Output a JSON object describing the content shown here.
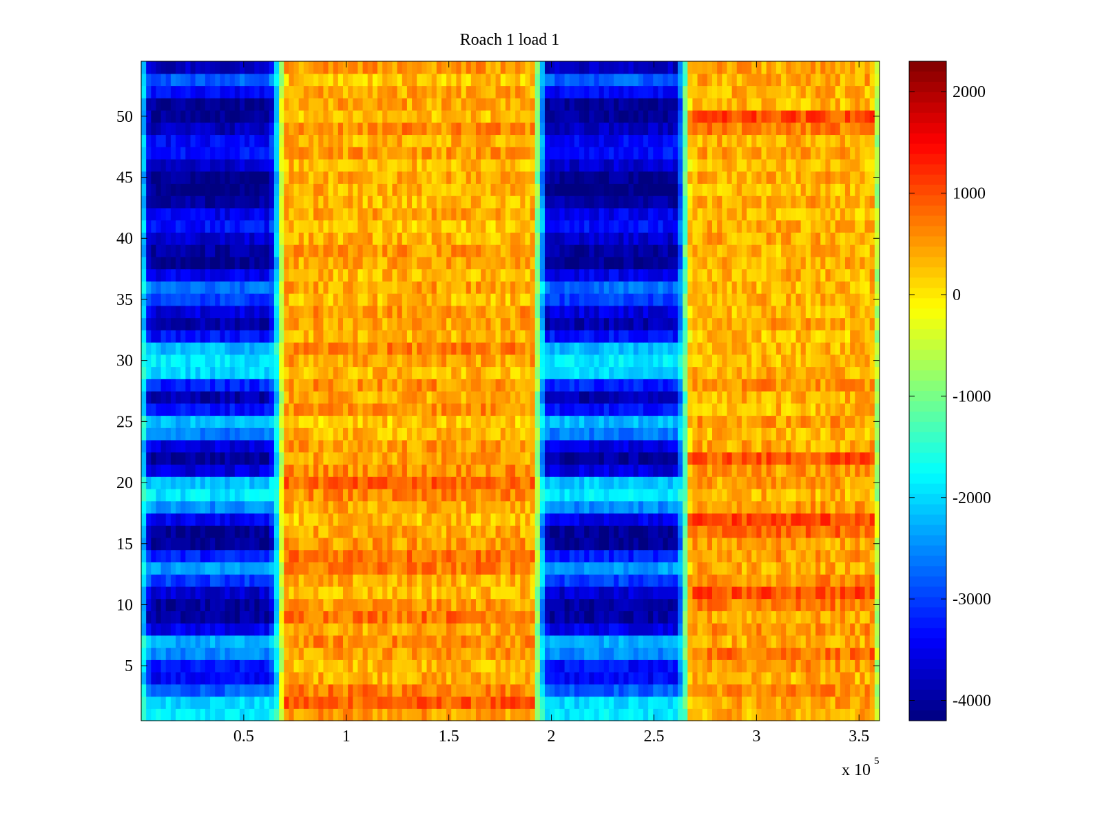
{
  "chart_data": {
    "type": "heatmap",
    "title": "Roach 1 load 1",
    "xlabel": "",
    "ylabel": "",
    "x_multiplier_label": "x 10",
    "x_multiplier_exponent": "5",
    "xlim": [
      0,
      3.6
    ],
    "ylim": [
      0.5,
      54.5
    ],
    "x_ticks": [
      0.5,
      1,
      1.5,
      2,
      2.5,
      3,
      3.5
    ],
    "x_tick_labels": [
      "0.5",
      "1",
      "1.5",
      "2",
      "2.5",
      "3",
      "3.5"
    ],
    "y_ticks": [
      5,
      10,
      15,
      20,
      25,
      30,
      35,
      40,
      45,
      50
    ],
    "y_tick_labels": [
      "5",
      "10",
      "15",
      "20",
      "25",
      "30",
      "35",
      "40",
      "45",
      "50"
    ],
    "rows": 54,
    "colorbar": {
      "colormap": "jet",
      "clim": [
        -4200,
        2300
      ],
      "ticks": [
        2000,
        1000,
        0,
        -1000,
        -2000,
        -3000,
        -4000
      ],
      "tick_labels": [
        "2000",
        "1000",
        "0",
        "-1000",
        "-2000",
        "-3000",
        "-4000"
      ]
    },
    "segments": [
      {
        "x_start": 0.0,
        "x_end": 0.67,
        "state": "low"
      },
      {
        "x_start": 0.67,
        "x_end": 1.94,
        "state": "high"
      },
      {
        "x_start": 1.94,
        "x_end": 2.65,
        "state": "low"
      },
      {
        "x_start": 2.65,
        "x_end": 3.6,
        "state": "high"
      }
    ],
    "low_state_row_values": [
      -1900,
      -2000,
      -2800,
      -3400,
      -3300,
      -2500,
      -2300,
      -3500,
      -4000,
      -4000,
      -3700,
      -3000,
      -2400,
      -3200,
      -4100,
      -4100,
      -3500,
      -2500,
      -1900,
      -2100,
      -3600,
      -4000,
      -3600,
      -2600,
      -2200,
      -3300,
      -3900,
      -3200,
      -2000,
      -1900,
      -2200,
      -3300,
      -3900,
      -3600,
      -3000,
      -2700,
      -3500,
      -4100,
      -4000,
      -3700,
      -3300,
      -3500,
      -4000,
      -4200,
      -4100,
      -3700,
      -3300,
      -3400,
      -3800,
      -4100,
      -4100,
      -3400,
      -2800,
      -3800
    ],
    "high_state_row_values": [
      500,
      900,
      700,
      400,
      300,
      500,
      600,
      400,
      800,
      500,
      300,
      350,
      700,
      800,
      500,
      400,
      250,
      400,
      600,
      850,
      600,
      450,
      500,
      300,
      200,
      600,
      400,
      550,
      300,
      450,
      650,
      350,
      400,
      500,
      300,
      450,
      300,
      400,
      500,
      350,
      250,
      400,
      300,
      350,
      400,
      300,
      500,
      350,
      600,
      300,
      450,
      400,
      250,
      500
    ],
    "right_high_row_values": [
      350,
      450,
      600,
      350,
      550,
      800,
      400,
      550,
      400,
      700,
      1000,
      600,
      400,
      500,
      450,
      800,
      1050,
      500,
      350,
      450,
      500,
      950,
      400,
      300,
      500,
      300,
      350,
      550,
      400,
      300,
      350,
      250,
      450,
      300,
      350,
      300,
      350,
      400,
      300,
      400,
      350,
      300,
      400,
      300,
      400,
      300,
      450,
      350,
      700,
      1000,
      300,
      350,
      400,
      450
    ],
    "annotations": []
  }
}
